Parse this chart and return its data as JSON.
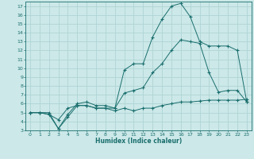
{
  "xlabel": "Humidex (Indice chaleur)",
  "xlim": [
    -0.5,
    23.5
  ],
  "ylim": [
    3,
    17.5
  ],
  "yticks": [
    3,
    4,
    5,
    6,
    7,
    8,
    9,
    10,
    11,
    12,
    13,
    14,
    15,
    16,
    17
  ],
  "xticks": [
    0,
    1,
    2,
    3,
    4,
    5,
    6,
    7,
    8,
    9,
    10,
    11,
    12,
    13,
    14,
    15,
    16,
    17,
    18,
    19,
    20,
    21,
    22,
    23
  ],
  "bg_color": "#cce8e8",
  "grid_color": "#b0d4d4",
  "line_color": "#1a6e6e",
  "line1_x": [
    0,
    1,
    2,
    3,
    4,
    5,
    6,
    7,
    8,
    9,
    10,
    11,
    12,
    13,
    14,
    15,
    16,
    17,
    18,
    19,
    20,
    21,
    22,
    23
  ],
  "line1_y": [
    5.0,
    5.0,
    5.0,
    3.2,
    4.5,
    5.8,
    5.8,
    5.5,
    5.5,
    5.2,
    5.5,
    5.2,
    5.5,
    5.5,
    5.8,
    6.0,
    6.2,
    6.2,
    6.3,
    6.4,
    6.4,
    6.4,
    6.4,
    6.5
  ],
  "line2_x": [
    0,
    1,
    2,
    3,
    4,
    5,
    6,
    7,
    8,
    9,
    10,
    11,
    12,
    13,
    14,
    15,
    16,
    17,
    18,
    19,
    20,
    21,
    22,
    23
  ],
  "line2_y": [
    5.0,
    5.0,
    4.8,
    4.2,
    5.5,
    5.8,
    5.8,
    5.5,
    5.5,
    5.5,
    7.2,
    7.5,
    7.8,
    9.5,
    10.5,
    12.0,
    13.2,
    13.0,
    12.8,
    9.5,
    7.3,
    7.5,
    7.5,
    6.2
  ],
  "line3_x": [
    0,
    1,
    2,
    3,
    4,
    5,
    6,
    7,
    8,
    9,
    10,
    11,
    12,
    13,
    14,
    15,
    16,
    17,
    18,
    19,
    20,
    21,
    22,
    23
  ],
  "line3_y": [
    5.0,
    5.0,
    4.8,
    3.2,
    4.8,
    6.0,
    6.2,
    5.8,
    5.8,
    5.5,
    9.8,
    10.5,
    10.5,
    13.5,
    15.5,
    17.0,
    17.3,
    15.8,
    13.0,
    12.5,
    12.5,
    12.5,
    12.0,
    6.2
  ]
}
